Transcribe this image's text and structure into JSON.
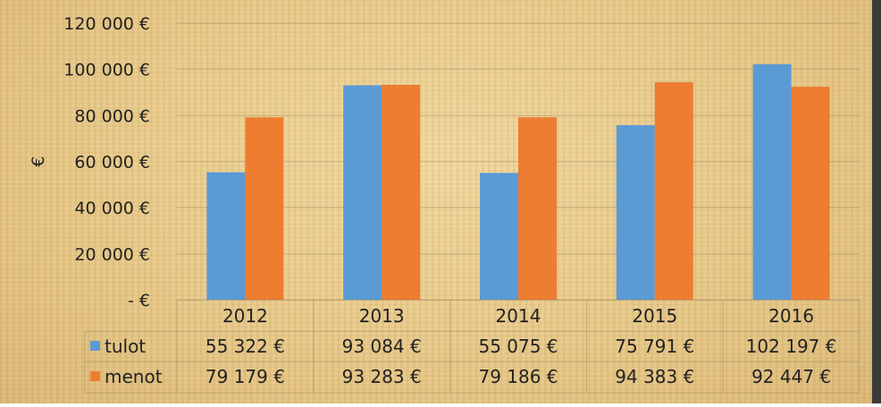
{
  "chart_data": {
    "type": "bar",
    "ylabel": "€",
    "categories": [
      "2012",
      "2013",
      "2014",
      "2015",
      "2016"
    ],
    "ylim": [
      0,
      120000
    ],
    "yticks": [
      {
        "value": 0,
        "label": "-   €"
      },
      {
        "value": 20000,
        "label": "20 000 €"
      },
      {
        "value": 40000,
        "label": "40 000 €"
      },
      {
        "value": 60000,
        "label": "60 000 €"
      },
      {
        "value": 80000,
        "label": "80 000 €"
      },
      {
        "value": 100000,
        "label": "100 000 €"
      },
      {
        "value": 120000,
        "label": "120 000 €"
      }
    ],
    "grid": true,
    "legend": "data-table",
    "series": [
      {
        "name": "tulot",
        "color": "#5b9bd5",
        "values": [
          55322,
          93084,
          55075,
          75791,
          102197
        ],
        "labels": [
          "55 322 €",
          "93 084 €",
          "55 075 €",
          "75 791 €",
          "102 197 €"
        ]
      },
      {
        "name": "menot",
        "color": "#ed7d31",
        "values": [
          79179,
          93283,
          79186,
          94383,
          92447
        ],
        "labels": [
          "79 179 €",
          "93 283 €",
          "79 186 €",
          "94 383 €",
          "92 447 €"
        ]
      }
    ]
  }
}
